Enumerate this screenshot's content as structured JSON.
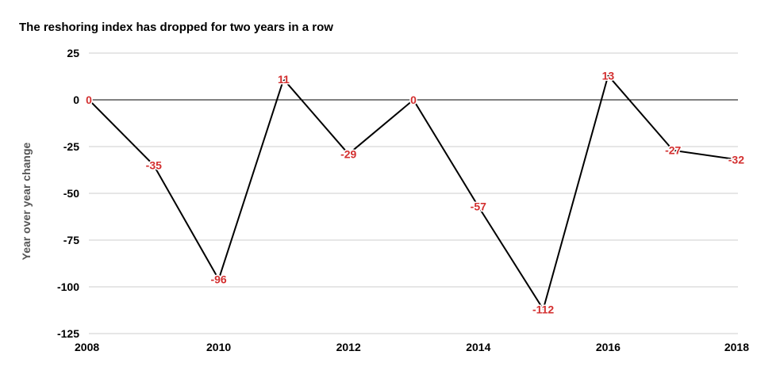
{
  "chart_data": {
    "type": "line",
    "title": "The reshoring index has dropped for two years in a row",
    "xlabel": "",
    "ylabel": "Year over year change",
    "x": [
      2008,
      2009,
      2010,
      2011,
      2012,
      2013,
      2014,
      2015,
      2016,
      2017,
      2018
    ],
    "values": [
      0,
      -35,
      -96,
      11,
      -29,
      0,
      -57,
      -112,
      13,
      -27,
      -32
    ],
    "data_labels": [
      "0",
      "-35",
      "-96",
      "11",
      "-29",
      "0",
      "-57",
      "-112",
      "13",
      "-27",
      "-32"
    ],
    "x_ticks": [
      "2008",
      "2010",
      "2012",
      "2014",
      "2016",
      "2018"
    ],
    "y_ticks": [
      "25",
      "0",
      "-25",
      "-50",
      "-75",
      "-100",
      "-125"
    ],
    "xlim": [
      2008,
      2018
    ],
    "ylim": [
      -125,
      25
    ],
    "grid": true,
    "legend": "none",
    "colors": {
      "line": "#000000",
      "label": "#d32f2f",
      "grid": "#cccccc",
      "zero_line": "#000000"
    }
  }
}
